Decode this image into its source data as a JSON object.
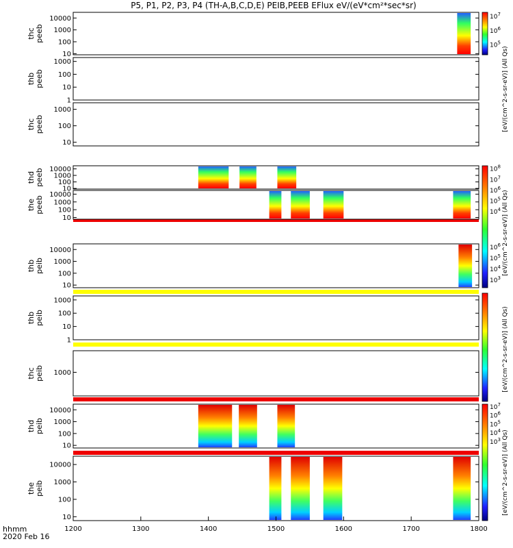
{
  "title": "P5, P1, P2, P3, P4 (TH-A,B,C,D,E) PEIB,PEEB EFlux eV/(eV*cm²*sec*sr)",
  "footer": {
    "line1": "hhmm",
    "line2": "2020 Feb 16"
  },
  "xaxis": {
    "min": 1200,
    "max": 1800,
    "ticks": [
      "1200",
      "1300",
      "1400",
      "1500",
      "1600",
      "1700",
      "1800"
    ]
  },
  "colorbar_labels": {
    "cb1": "[eV/(cm^2-s-sr-eV)] (All Qs)",
    "cb2": "[eV/(cm^2-s-sr-eV)] (All Qs)",
    "cb3": "[eV/(cm^2-s-sr-eV)] (All Qs)",
    "cb4": "[eV/(cm^2-s-sr-eV)] (All Qs)"
  },
  "chart_data": [
    {
      "type": "heatmap",
      "ylabel": [
        "thc",
        "peeb"
      ],
      "yticks": [
        "10",
        "100",
        "1000",
        "10000"
      ],
      "ylog": true,
      "ylim": [
        8,
        30000
      ],
      "blocks": [
        [
          1768,
          1788
        ]
      ],
      "colorbar": [
        "10^5",
        "10^6",
        "10^7"
      ]
    },
    {
      "type": "heatmap",
      "ylabel": [
        "thb",
        "peeb"
      ],
      "yticks": [
        "1",
        "10",
        "100",
        "1000"
      ],
      "ylog": true,
      "ylim": [
        1,
        2000
      ],
      "blocks": []
    },
    {
      "type": "heatmap",
      "ylabel": [
        "thc",
        "peeb"
      ],
      "yticks": [
        "10",
        "100",
        "1000"
      ],
      "ylog": true,
      "ylim": [
        6,
        2500
      ],
      "blocks": []
    },
    {
      "type": "heatmap",
      "ylabel": [
        "thd",
        "peeb"
      ],
      "yticks": [
        "10",
        "100",
        "1000",
        "10000"
      ],
      "ylog": true,
      "ylim": [
        8,
        30000
      ],
      "blocks": [
        [
          1385,
          1430
        ],
        [
          1446,
          1471
        ],
        [
          1502,
          1530
        ]
      ],
      "colorbar": [
        "10^4",
        "10^5",
        "10^6",
        "10^7",
        "10^8"
      ]
    },
    {
      "type": "heatmap",
      "ylabel": [
        "the",
        "peeb"
      ],
      "yticks": [
        "10",
        "100",
        "1000",
        "10000"
      ],
      "ylog": true,
      "ylim": [
        6,
        30000
      ],
      "blocks": [
        [
          1490,
          1508
        ],
        [
          1522,
          1550
        ],
        [
          1570,
          1600
        ],
        [
          1762,
          1788
        ]
      ],
      "colorbar": [
        "10^5",
        "10^6",
        "10^7"
      ]
    },
    {
      "type": "heatmap",
      "ylabel": [
        "thb",
        "peib"
      ],
      "yticks": [
        "10",
        "100",
        "1000",
        "10000"
      ],
      "ylog": true,
      "ylim": [
        6,
        30000
      ],
      "blocks": [
        [
          1770,
          1790
        ]
      ],
      "colorbar": [
        "10^3",
        "10^4",
        "10^5",
        "10^6"
      ]
    },
    {
      "type": "heatmap",
      "ylabel": [
        "thb",
        "peib"
      ],
      "yticks": [
        "1",
        "10",
        "100",
        "1000"
      ],
      "ylog": true,
      "ylim": [
        1,
        2000
      ],
      "blocks": []
    },
    {
      "type": "heatmap",
      "ylabel": [
        "thc",
        "peib"
      ],
      "yticks": [
        "1000"
      ],
      "ylog": true,
      "ylim": [
        300,
        3000
      ],
      "blocks": []
    },
    {
      "type": "heatmap",
      "ylabel": [
        "thd",
        "peib"
      ],
      "yticks": [
        "10",
        "100",
        "1000",
        "10000"
      ],
      "ylog": true,
      "ylim": [
        6,
        30000
      ],
      "blocks": [
        [
          1385,
          1435
        ],
        [
          1445,
          1472
        ],
        [
          1502,
          1528
        ]
      ],
      "colorbar": [
        "10^3",
        "10^4",
        "10^5",
        "10^6",
        "10^7"
      ]
    },
    {
      "type": "heatmap",
      "ylabel": [
        "the",
        "peib"
      ],
      "yticks": [
        "10",
        "100",
        "1000",
        "10000"
      ],
      "ylog": true,
      "ylim": [
        6,
        30000
      ],
      "blocks": [
        [
          1490,
          1508
        ],
        [
          1522,
          1550
        ],
        [
          1570,
          1598
        ],
        [
          1762,
          1788
        ]
      ],
      "colorbar": [
        "10^3",
        "10^4",
        "10^5",
        "10^6"
      ]
    }
  ]
}
